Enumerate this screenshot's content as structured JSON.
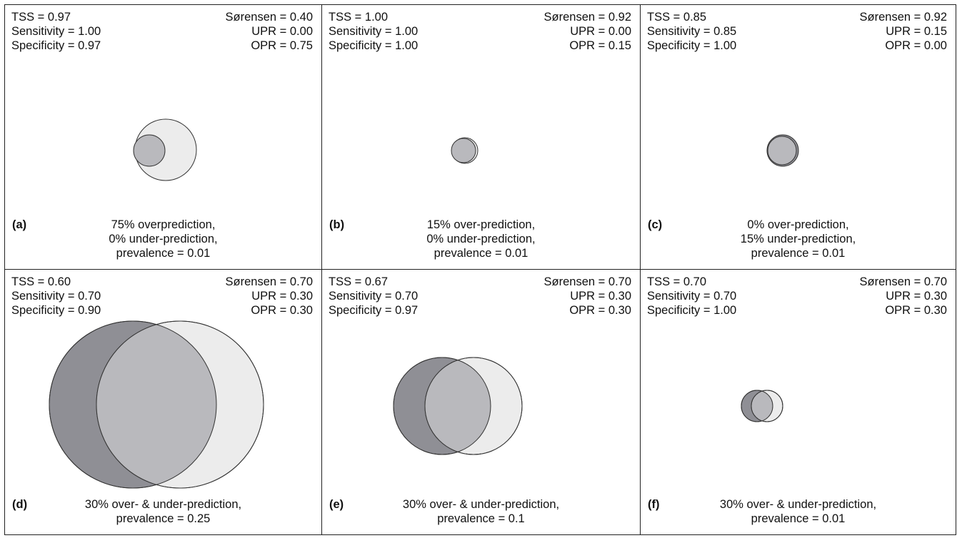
{
  "colors": {
    "observed_fill": "#8f8f95",
    "predicted_fill": "#ececec",
    "overlap_fill": "#b9b9bd",
    "stroke": "#333333"
  },
  "panels": [
    {
      "label": "(a)",
      "tss": "TSS = 0.97",
      "sensitivity": "Sensitivity = 1.00",
      "specificity": "Specificity = 0.97",
      "sorensen": "Sørensen = 0.40",
      "upr": "UPR = 0.00",
      "opr": "OPR = 0.75",
      "caption": [
        "75% overprediction,",
        "0% under-prediction,",
        "prevalence = 0.01"
      ],
      "over_prediction": 0.75,
      "under_prediction": 0.0,
      "prevalence": 0.01
    },
    {
      "label": "(b)",
      "tss": "TSS = 1.00",
      "sensitivity": "Sensitivity = 1.00",
      "specificity": "Specificity = 1.00",
      "sorensen": "Sørensen = 0.92",
      "upr": "UPR = 0.00",
      "opr": "OPR = 0.15",
      "caption": [
        "15% over-prediction,",
        "0% under-prediction,",
        "prevalence = 0.01"
      ],
      "over_prediction": 0.15,
      "under_prediction": 0.0,
      "prevalence": 0.01
    },
    {
      "label": "(c)",
      "tss": "TSS = 0.85",
      "sensitivity": "Sensitivity = 0.85",
      "specificity": "Specificity = 1.00",
      "sorensen": "Sørensen = 0.92",
      "upr": "UPR = 0.15",
      "opr": "OPR = 0.00",
      "caption": [
        "0% over-prediction,",
        "15% under-prediction,",
        "prevalence = 0.01"
      ],
      "over_prediction": 0.0,
      "under_prediction": 0.15,
      "prevalence": 0.01
    },
    {
      "label": "(d)",
      "tss": "TSS = 0.60",
      "sensitivity": "Sensitivity = 0.70",
      "specificity": "Specificity = 0.90",
      "sorensen": "Sørensen = 0.70",
      "upr": "UPR = 0.30",
      "opr": "OPR = 0.30",
      "caption": [
        "30% over- & under-prediction,",
        "prevalence = 0.25"
      ],
      "over_prediction": 0.3,
      "under_prediction": 0.3,
      "prevalence": 0.25
    },
    {
      "label": "(e)",
      "tss": "TSS = 0.67",
      "sensitivity": "Sensitivity = 0.70",
      "specificity": "Specificity = 0.97",
      "sorensen": "Sørensen = 0.70",
      "upr": "UPR = 0.30",
      "opr": "OPR = 0.30",
      "caption": [
        "30% over- & under-prediction,",
        "prevalence = 0.1"
      ],
      "over_prediction": 0.3,
      "under_prediction": 0.3,
      "prevalence": 0.1
    },
    {
      "label": "(f)",
      "tss": "TSS = 0.70",
      "sensitivity": "Sensitivity = 0.70",
      "specificity": "Specificity = 1.00",
      "sorensen": "Sørensen = 0.70",
      "upr": "UPR = 0.30",
      "opr": "OPR = 0.30",
      "caption": [
        "30% over- & under-prediction,",
        "prevalence = 0.01"
      ],
      "over_prediction": 0.3,
      "under_prediction": 0.3,
      "prevalence": 0.01
    }
  ]
}
